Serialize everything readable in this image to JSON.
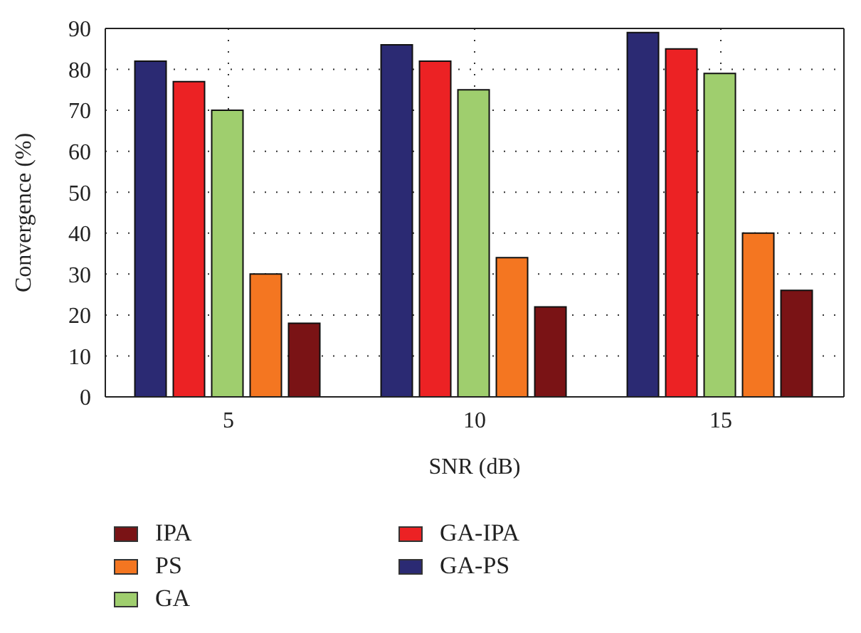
{
  "chart_data": {
    "type": "bar",
    "xlabel": "SNR (dB)",
    "ylabel": "Convergence (%)",
    "categories": [
      "5",
      "10",
      "15"
    ],
    "series": [
      {
        "name": "GA-PS",
        "color": "#2b2a73",
        "values": [
          82,
          86,
          89
        ]
      },
      {
        "name": "GA-IPA",
        "color": "#ec2224",
        "values": [
          77,
          82,
          85
        ]
      },
      {
        "name": "GA",
        "color": "#9fce6e",
        "values": [
          70,
          75,
          79
        ]
      },
      {
        "name": "PS",
        "color": "#f47621",
        "values": [
          30,
          34,
          40
        ]
      },
      {
        "name": "IPA",
        "color": "#7a1315",
        "values": [
          18,
          22,
          26
        ]
      }
    ],
    "ylim": [
      0,
      90
    ],
    "yticks": [
      0,
      10,
      20,
      30,
      40,
      50,
      60,
      70,
      80,
      90
    ],
    "grid": true,
    "legend": "bottom"
  }
}
